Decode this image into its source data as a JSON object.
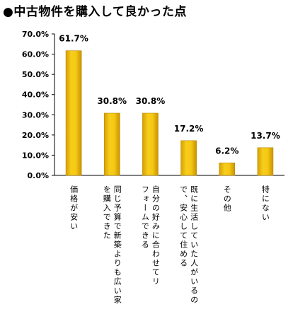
{
  "chart_data": {
    "type": "bar",
    "title": "●中古物件を購入して良かった点",
    "categories": [
      "価格が安い",
      "同じ予算で新築よりも広い家を購入できた",
      "自分の好みに合わせてリフォームできる",
      "既に生活していた人がいるので、安心して住める",
      "その他",
      "特にない"
    ],
    "category_lines": [
      [
        "価格が安い"
      ],
      [
        "同じ予算で新築よりも広い家",
        "を購入できた"
      ],
      [
        "自分の好みに合わせてリ",
        "フォームできる"
      ],
      [
        "既に生活していた人がいるの",
        "で、安心して住める"
      ],
      [
        "その他"
      ],
      [
        "特にない"
      ]
    ],
    "values": [
      61.7,
      30.8,
      30.8,
      17.2,
      6.2,
      13.7
    ],
    "value_labels": [
      "61.7%",
      "30.8%",
      "30.8%",
      "17.2%",
      "6.2%",
      "13.7%"
    ],
    "ylim": [
      0,
      70
    ],
    "yticks": [
      0,
      10,
      20,
      30,
      40,
      50,
      60,
      70
    ],
    "ytick_labels": [
      "0.0%",
      "10.0%",
      "20.0%",
      "30.0%",
      "40.0%",
      "50.0%",
      "60.0%",
      "70.0%"
    ],
    "xlabel": "",
    "ylabel": "",
    "grid": false,
    "legend": "none",
    "bar_color": "#F2C10A"
  }
}
